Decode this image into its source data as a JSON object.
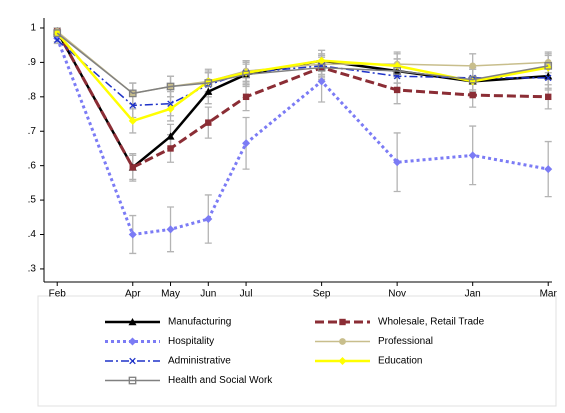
{
  "chart_data": {
    "type": "line",
    "x": [
      0,
      2,
      3,
      4,
      5,
      7,
      9,
      11,
      13
    ],
    "xlim": [
      -0.35,
      13.1
    ],
    "xticks": [
      {
        "value": 0,
        "label": "Feb"
      },
      {
        "value": 2,
        "label": "Apr"
      },
      {
        "value": 3,
        "label": "May"
      },
      {
        "value": 4,
        "label": "Jun"
      },
      {
        "value": 5,
        "label": "Jul"
      },
      {
        "value": 7,
        "label": "Sep"
      },
      {
        "value": 9,
        "label": "Nov"
      },
      {
        "value": 11,
        "label": "Jan"
      },
      {
        "value": 13,
        "label": "Mar"
      }
    ],
    "ylim": [
      0.262,
      1.029
    ],
    "yticks": [
      {
        "value": 0.3,
        "label": ".3"
      },
      {
        "value": 0.4,
        "label": ".4"
      },
      {
        "value": 0.5,
        "label": ".5"
      },
      {
        "value": 0.6,
        "label": ".6"
      },
      {
        "value": 0.7,
        "label": ".7"
      },
      {
        "value": 0.8,
        "label": ".8"
      },
      {
        "value": 0.9,
        "label": ".9"
      },
      1
    ],
    "error_color": "#b4b4b4",
    "series": [
      {
        "name": "Manufacturing",
        "color": "#000000",
        "style": "solid",
        "width": 2.5,
        "marker": "triangle",
        "values": [
          0.99,
          0.595,
          0.685,
          0.815,
          0.865,
          0.905,
          0.875,
          0.845,
          0.86
        ],
        "errors": [
          0.01,
          0.035,
          0.035,
          0.035,
          0.035,
          0.03,
          0.035,
          0.035,
          0.035
        ]
      },
      {
        "name": "Wholesale, Retail Trade",
        "color": "#8b2d35",
        "style": "dashed",
        "width": 3,
        "marker": "square",
        "values": [
          0.99,
          0.595,
          0.65,
          0.725,
          0.8,
          0.885,
          0.82,
          0.805,
          0.8
        ],
        "errors": [
          0.01,
          0.04,
          0.04,
          0.045,
          0.04,
          0.035,
          0.04,
          0.035,
          0.035
        ]
      },
      {
        "name": "Hospitality",
        "color": "#7b7bf5",
        "style": "dotted",
        "width": 3,
        "marker": "diamond",
        "values": [
          0.97,
          0.4,
          0.415,
          0.445,
          0.665,
          0.845,
          0.61,
          0.63,
          0.59
        ],
        "errors": [
          0.01,
          0.055,
          0.065,
          0.07,
          0.075,
          0.06,
          0.085,
          0.085,
          0.08
        ]
      },
      {
        "name": "Professional",
        "color": "#c8be8c",
        "style": "solid",
        "width": 1.5,
        "marker": "circle",
        "values": [
          0.99,
          0.81,
          0.83,
          0.845,
          0.875,
          0.895,
          0.895,
          0.89,
          0.9
        ],
        "errors": [
          0.01,
          0.03,
          0.03,
          0.03,
          0.03,
          0.03,
          0.035,
          0.035,
          0.03
        ]
      },
      {
        "name": "Administrative",
        "color": "#1e32c8",
        "style": "dashdot",
        "width": 1.5,
        "marker": "x",
        "values": [
          0.965,
          0.775,
          0.78,
          0.835,
          0.87,
          0.89,
          0.86,
          0.855,
          0.855
        ],
        "errors": [
          0.01,
          0.035,
          0.035,
          0.035,
          0.035,
          0.03,
          0.035,
          0.035,
          0.035
        ]
      },
      {
        "name": "Education",
        "color": "#ffff00",
        "style": "solid",
        "width": 2.5,
        "marker": "diamond",
        "values": [
          0.985,
          0.73,
          0.765,
          0.845,
          0.87,
          0.905,
          0.89,
          0.845,
          0.885
        ],
        "errors": [
          0.01,
          0.035,
          0.035,
          0.035,
          0.035,
          0.03,
          0.035,
          0.035,
          0.035
        ]
      },
      {
        "name": "Health and Social Work",
        "color": "#808080",
        "style": "solid",
        "width": 1.5,
        "marker": "open-square",
        "values": [
          0.985,
          0.81,
          0.83,
          0.84,
          0.865,
          0.885,
          0.875,
          0.85,
          0.89
        ],
        "errors": [
          0.01,
          0.03,
          0.03,
          0.03,
          0.03,
          0.03,
          0.035,
          0.035,
          0.035
        ]
      }
    ]
  }
}
